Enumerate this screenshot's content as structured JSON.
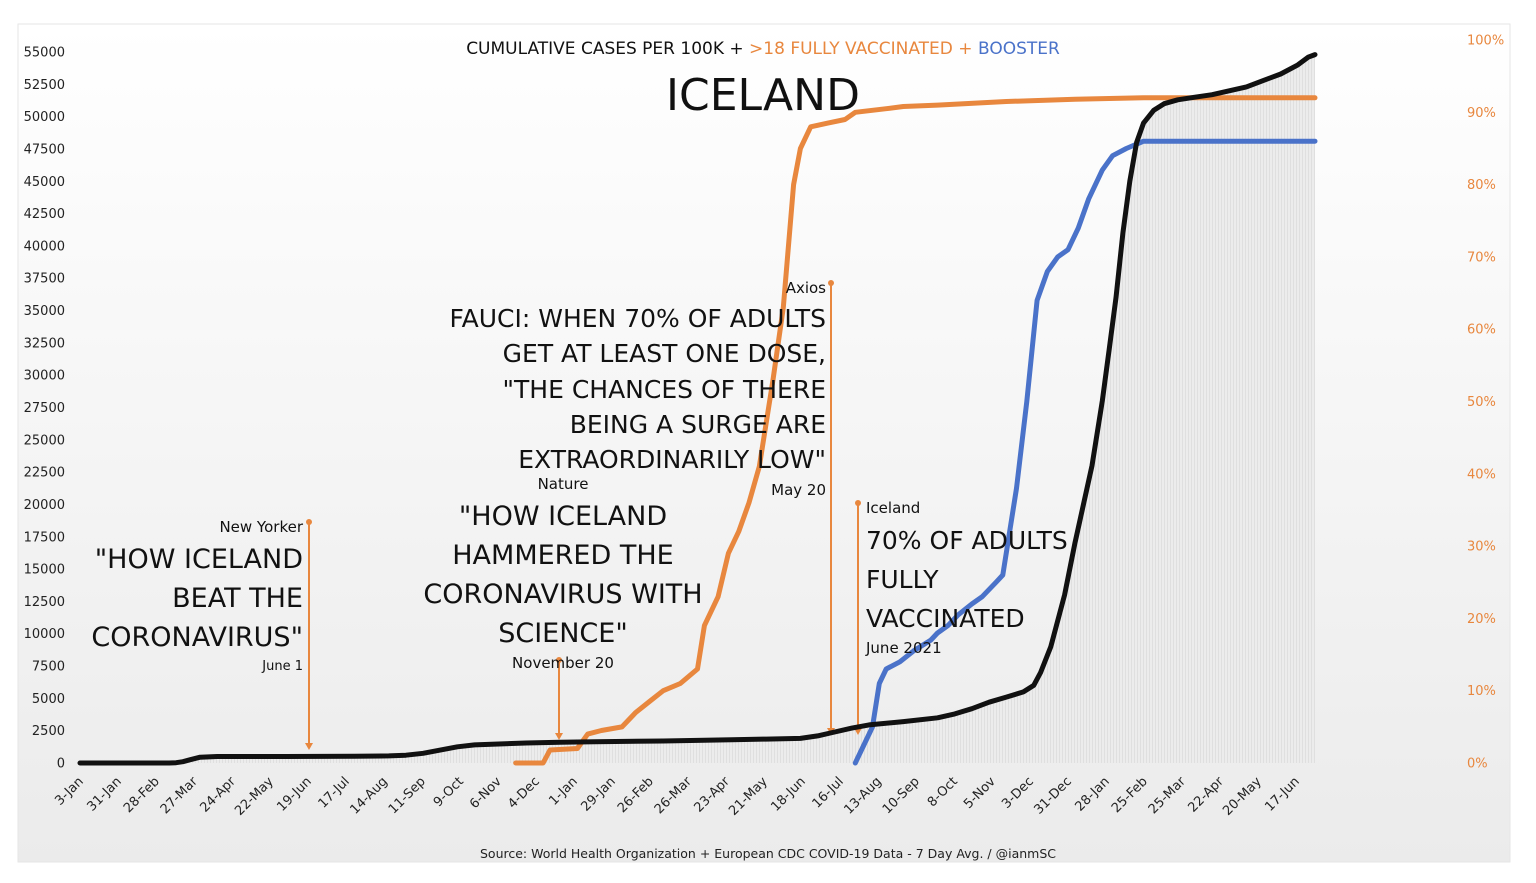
{
  "chart_data": {
    "type": "line",
    "title_parts": {
      "part1": "CUMULATIVE CASES PER 100K + ",
      "part2": ">18 FULLY VACCINATED + ",
      "part3": "BOOSTER"
    },
    "country": "ICELAND",
    "footer": "Source: World Health Organization + European CDC COVID-19 Data - 7 Day Avg. / @ianmSC",
    "colors": {
      "cases": "#111111",
      "vaccinated": "#e8873e",
      "booster": "#4a72c9",
      "annotation": "#e8873e",
      "area": "#dcdcdc"
    },
    "left_axis": {
      "ticks": [
        "0",
        "2500",
        "5000",
        "7500",
        "10000",
        "12500",
        "15000",
        "17500",
        "20000",
        "22500",
        "25000",
        "27500",
        "30000",
        "32500",
        "35000",
        "37500",
        "40000",
        "42500",
        "45000",
        "47500",
        "50000",
        "52500",
        "55000"
      ],
      "min": 0,
      "max": 55000
    },
    "right_axis": {
      "ticks": [
        "0%",
        "10%",
        "20%",
        "30%",
        "40%",
        "50%",
        "60%",
        "70%",
        "80%",
        "90%",
        "100%"
      ],
      "min": 0,
      "max": 100
    },
    "x_ticks": [
      "3-Jan",
      "31-Jan",
      "28-Feb",
      "27-Mar",
      "24-Apr",
      "22-May",
      "19-Jun",
      "17-Jul",
      "14-Aug",
      "11-Sep",
      "9-Oct",
      "6-Nov",
      "4-Dec",
      "1-Jan",
      "29-Jan",
      "26-Feb",
      "26-Mar",
      "23-Apr",
      "21-May",
      "18-Jun",
      "16-Jul",
      "13-Aug",
      "10-Sep",
      "8-Oct",
      "5-Nov",
      "3-Dec",
      "31-Dec",
      "28-Jan",
      "25-Feb",
      "25-Mar",
      "22-Apr",
      "20-May",
      "17-Jun"
    ],
    "x_max": 33.2,
    "series": [
      {
        "name": "Cumulative cases per 100K",
        "axis": "left",
        "points": [
          [
            0,
            0
          ],
          [
            2.6,
            0
          ],
          [
            2.8,
            20
          ],
          [
            3.0,
            100
          ],
          [
            3.2,
            250
          ],
          [
            3.5,
            450
          ],
          [
            4,
            500
          ],
          [
            6,
            500
          ],
          [
            8,
            520
          ],
          [
            9,
            550
          ],
          [
            9.5,
            600
          ],
          [
            10,
            750
          ],
          [
            10.5,
            1000
          ],
          [
            11,
            1250
          ],
          [
            11.5,
            1400
          ],
          [
            12,
            1450
          ],
          [
            13,
            1550
          ],
          [
            14,
            1600
          ],
          [
            15,
            1650
          ],
          [
            17,
            1700
          ],
          [
            19,
            1800
          ],
          [
            20,
            1850
          ],
          [
            21,
            1900
          ],
          [
            21.5,
            2100
          ],
          [
            22,
            2400
          ],
          [
            22.5,
            2700
          ],
          [
            23,
            2950
          ],
          [
            24,
            3200
          ],
          [
            25,
            3500
          ],
          [
            25.5,
            3800
          ],
          [
            26,
            4200
          ],
          [
            26.5,
            4700
          ],
          [
            27,
            5100
          ],
          [
            27.5,
            5500
          ],
          [
            27.8,
            6000
          ],
          [
            28,
            7000
          ],
          [
            28.3,
            9000
          ],
          [
            28.7,
            13000
          ],
          [
            29,
            17000
          ],
          [
            29.5,
            23000
          ],
          [
            29.8,
            28000
          ],
          [
            30,
            32000
          ],
          [
            30.2,
            36000
          ],
          [
            30.4,
            41000
          ],
          [
            30.6,
            45000
          ],
          [
            30.8,
            48000
          ],
          [
            31,
            49500
          ],
          [
            31.3,
            50500
          ],
          [
            31.6,
            51000
          ],
          [
            32,
            51300
          ],
          [
            32.5,
            51500
          ],
          [
            33,
            51700
          ],
          [
            33.5,
            52000
          ],
          [
            34,
            52300
          ],
          [
            34.5,
            52800
          ],
          [
            35,
            53300
          ],
          [
            35.5,
            54000
          ],
          [
            35.8,
            54600
          ],
          [
            36,
            54800
          ]
        ]
      },
      {
        "name": ">18 fully vaccinated",
        "axis": "right",
        "points": [
          [
            12.7,
            0
          ],
          [
            13.5,
            0
          ],
          [
            13.7,
            1.8
          ],
          [
            14.5,
            2
          ],
          [
            14.8,
            4
          ],
          [
            15.2,
            4.5
          ],
          [
            15.8,
            5
          ],
          [
            16.2,
            7
          ],
          [
            16.6,
            8.5
          ],
          [
            17,
            10
          ],
          [
            17.5,
            11
          ],
          [
            18,
            13
          ],
          [
            18.2,
            19
          ],
          [
            18.6,
            23
          ],
          [
            18.9,
            29
          ],
          [
            19.2,
            32
          ],
          [
            19.5,
            36
          ],
          [
            19.8,
            41
          ],
          [
            20.2,
            53
          ],
          [
            20.5,
            63
          ],
          [
            20.8,
            80
          ],
          [
            21,
            85
          ],
          [
            21.3,
            88
          ],
          [
            21.8,
            88.5
          ],
          [
            22.3,
            89
          ],
          [
            22.6,
            90
          ],
          [
            23.5,
            90.5
          ],
          [
            24,
            90.8
          ],
          [
            25,
            91
          ],
          [
            27,
            91.5
          ],
          [
            29,
            91.8
          ],
          [
            31,
            92
          ],
          [
            33,
            92
          ],
          [
            36,
            92
          ]
        ]
      },
      {
        "name": "Booster",
        "axis": "right",
        "points": [
          [
            22.6,
            0
          ],
          [
            22.8,
            2
          ],
          [
            23.1,
            5
          ],
          [
            23.3,
            11
          ],
          [
            23.5,
            13
          ],
          [
            23.9,
            14
          ],
          [
            24.3,
            15.5
          ],
          [
            24.8,
            17
          ],
          [
            25,
            18
          ],
          [
            25.3,
            19
          ],
          [
            25.6,
            20.5
          ],
          [
            26,
            22
          ],
          [
            26.3,
            23
          ],
          [
            26.7,
            25
          ],
          [
            26.9,
            26
          ],
          [
            27.3,
            38
          ],
          [
            27.6,
            50
          ],
          [
            27.9,
            64
          ],
          [
            28.2,
            68
          ],
          [
            28.5,
            70
          ],
          [
            28.8,
            71
          ],
          [
            29.1,
            74
          ],
          [
            29.4,
            78
          ],
          [
            29.8,
            82
          ],
          [
            30.1,
            84
          ],
          [
            30.5,
            85
          ],
          [
            31,
            86
          ],
          [
            32,
            86
          ],
          [
            36,
            86
          ]
        ]
      }
    ],
    "annotations": [
      {
        "source": "New Yorker",
        "lines": [
          "\"HOW ICELAND",
          "BEAT THE",
          "CORONAVIRUS\""
        ],
        "date": "June 1"
      },
      {
        "source": "Nature",
        "lines": [
          "\"HOW ICELAND",
          "HAMMERED THE",
          "CORONAVIRUS WITH",
          "SCIENCE\""
        ],
        "date": "November 20"
      },
      {
        "source": "Axios",
        "lines": [
          "FAUCI: WHEN 70% OF ADULTS",
          "GET AT LEAST ONE DOSE,",
          "\"THE CHANCES OF THERE",
          "BEING A SURGE ARE",
          "EXTRAORDINARILY LOW\""
        ],
        "date": "May 20"
      },
      {
        "source": "Iceland",
        "lines": [
          "70% OF ADULTS",
          "FULLY",
          "VACCINATED"
        ],
        "date": "June 2021"
      }
    ]
  }
}
